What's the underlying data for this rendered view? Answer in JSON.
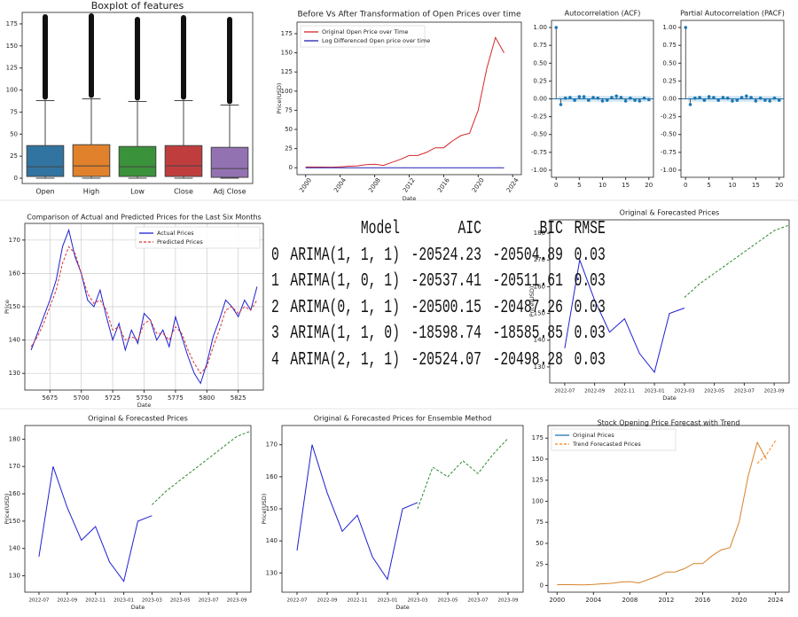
{
  "chart_data": [
    {
      "type": "box",
      "title": "Boxplot of features",
      "categories": [
        "Open",
        "High",
        "Low",
        "Close",
        "Adj Close"
      ],
      "colors": [
        "#3274a1",
        "#e1812c",
        "#3a923a",
        "#c03d3e",
        "#9372b2"
      ],
      "low": [
        0,
        0,
        0,
        0,
        0
      ],
      "q1": [
        2,
        2,
        2,
        2,
        1
      ],
      "median": [
        13,
        14,
        13,
        14,
        11
      ],
      "q3": [
        37,
        38,
        36,
        37,
        35
      ],
      "high": [
        88,
        90,
        87,
        88,
        83
      ],
      "outlier_max": [
        183,
        184,
        180,
        182,
        180
      ],
      "ylim": [
        -6,
        188
      ],
      "yticks": [
        0,
        25,
        50,
        75,
        100,
        125,
        150,
        175
      ]
    },
    {
      "type": "line",
      "title": "Before Vs After Transformation of Open Prices over time",
      "x": [
        2000,
        2001,
        2002,
        2003,
        2004,
        2005,
        2006,
        2007,
        2008,
        2009,
        2010,
        2011,
        2012,
        2013,
        2014,
        2015,
        2016,
        2017,
        2018,
        2019,
        2020,
        2021,
        2022,
        2023
      ],
      "series": [
        {
          "name": "Original Open Price over Time",
          "color": "#d62728",
          "values": [
            1,
            1,
            0.8,
            0.7,
            1.2,
            2,
            2.5,
            4,
            4.5,
            3,
            7,
            11,
            16,
            16,
            20,
            26,
            26,
            35,
            42,
            45,
            75,
            130,
            170,
            150
          ]
        },
        {
          "name": "Log Differenced Open price over time",
          "color": "#1f1fb4",
          "values": [
            0,
            0,
            0,
            0,
            0,
            0,
            0,
            0,
            0,
            0,
            0,
            0,
            0,
            0,
            0,
            0,
            0,
            0,
            0,
            0,
            0,
            0,
            0,
            0
          ]
        }
      ],
      "xlim": [
        1999,
        2025
      ],
      "xticks": [
        2000,
        2004,
        2008,
        2012,
        2016,
        2020,
        2024
      ],
      "ylim": [
        -9,
        190
      ],
      "yticks": [
        0,
        25,
        50,
        75,
        100,
        125,
        150,
        175
      ],
      "xlabel": "Date",
      "ylabel": "Price(USD)",
      "legend": "upper left"
    },
    {
      "type": "stem",
      "title": "Autocorrelation (ACF)",
      "color": "#1f77b4",
      "x": [
        0,
        1,
        2,
        3,
        4,
        5,
        6,
        7,
        8,
        9,
        10,
        11,
        12,
        13,
        14,
        15,
        16,
        17,
        18,
        19,
        20
      ],
      "values": [
        1,
        -0.08,
        0.01,
        0.02,
        -0.02,
        0.03,
        0.03,
        -0.02,
        0.02,
        0.01,
        -0.03,
        -0.02,
        0.02,
        0.04,
        0.02,
        -0.03,
        0.01,
        -0.02,
        -0.03,
        0.01,
        -0.01
      ],
      "xlim": [
        -1,
        21
      ],
      "xticks": [
        0,
        5,
        10,
        15,
        20
      ],
      "ylim": [
        -1.1,
        1.1
      ],
      "yticks": [
        {
          "value": -1,
          "label": "-1.00"
        },
        -0.75,
        {
          "value": -0.5,
          "label": "-0.50"
        },
        -0.25,
        {
          "value": 0,
          "label": "0.00"
        },
        0.25,
        {
          "value": 0.5,
          "label": "0.50"
        },
        0.75,
        {
          "value": 1,
          "label": "1.00"
        }
      ]
    },
    {
      "type": "stem",
      "title": "Partial Autocorrelation (PACF)",
      "color": "#1f77b4",
      "x": [
        0,
        1,
        2,
        3,
        4,
        5,
        6,
        7,
        8,
        9,
        10,
        11,
        12,
        13,
        14,
        15,
        16,
        17,
        18,
        19,
        20
      ],
      "values": [
        1,
        -0.08,
        0.01,
        0.02,
        -0.02,
        0.03,
        0.02,
        -0.02,
        0.02,
        0.01,
        -0.03,
        -0.02,
        0.02,
        0.04,
        0.02,
        -0.03,
        0.01,
        -0.02,
        -0.03,
        0.01,
        -0.02
      ],
      "xlim": [
        -1,
        21
      ],
      "xticks": [
        0,
        5,
        10,
        15,
        20
      ],
      "ylim": [
        -1.1,
        1.1
      ],
      "yticks": [
        {
          "value": -1,
          "label": "-1.00"
        },
        -0.75,
        {
          "value": -0.5,
          "label": "-0.50"
        },
        -0.25,
        {
          "value": 0,
          "label": "0.00"
        },
        0.25,
        {
          "value": 0.5,
          "label": "0.50"
        },
        0.75,
        {
          "value": 1,
          "label": "1.00"
        }
      ]
    },
    {
      "type": "line",
      "title": "Comparison of Actual and Predicted Prices for the Last Six Months",
      "x": [
        5660,
        5665,
        5670,
        5675,
        5680,
        5685,
        5690,
        5695,
        5700,
        5705,
        5710,
        5715,
        5720,
        5725,
        5730,
        5735,
        5740,
        5745,
        5750,
        5755,
        5760,
        5765,
        5770,
        5775,
        5780,
        5785,
        5790,
        5795,
        5800,
        5805,
        5810,
        5815,
        5820,
        5825,
        5830,
        5835,
        5840
      ],
      "series": [
        {
          "name": "Actual Prices",
          "color": "#1f1fd0",
          "values": [
            137,
            142,
            147,
            152,
            158,
            168,
            173,
            165,
            160,
            152,
            150,
            155,
            147,
            140,
            145,
            137,
            143,
            139,
            148,
            146,
            140,
            143,
            138,
            147,
            141,
            135,
            130,
            127,
            133,
            141,
            146,
            152,
            150,
            147,
            152,
            149,
            156
          ]
        },
        {
          "name": "Predicted Prices",
          "color": "#e03030",
          "linestyle": "dashed",
          "values": [
            138,
            141,
            145,
            150,
            155,
            163,
            168,
            166,
            160,
            154,
            151,
            152,
            149,
            143,
            144,
            140,
            141,
            140,
            145,
            146,
            142,
            142,
            140,
            144,
            142,
            137,
            133,
            130,
            132,
            138,
            143,
            149,
            150,
            148,
            150,
            149,
            152
          ]
        }
      ],
      "xlim": [
        5655,
        5845
      ],
      "xticks": [
        5675,
        5700,
        5725,
        5750,
        5775,
        5800,
        5825
      ],
      "ylim": [
        125,
        175
      ],
      "yticks": [
        130,
        140,
        150,
        160,
        170
      ],
      "xlabel": "Date",
      "ylabel": "Price",
      "grid": true,
      "legend": "upper right"
    },
    {
      "type": "line",
      "title": "Original & Forecasted Prices",
      "series": [
        {
          "color": "#1f1fd0",
          "x": [
            "2022-07",
            "2022-08",
            "2022-09",
            "2022-10",
            "2022-11",
            "2022-12",
            "2023-01",
            "2023-02",
            "2023-03"
          ],
          "values": [
            137,
            170,
            155,
            143,
            148,
            135,
            128,
            150,
            152
          ]
        },
        {
          "color": "#2a8a2a",
          "linestyle": "dashed",
          "x": [
            "2023-03",
            "2023-04",
            "2023-05",
            "2023-06",
            "2023-07",
            "2023-08",
            "2023-09",
            "2023-10"
          ],
          "values": [
            156,
            161,
            165,
            169,
            173,
            177,
            181,
            183
          ]
        }
      ],
      "xlim": [
        "2022-06",
        "2023-10"
      ],
      "xticks": [
        "2022-07",
        "2022-09",
        "2022-11",
        "2023-01",
        "2023-03",
        "2023-05",
        "2023-07",
        "2023-09"
      ],
      "ylim": [
        124,
        185
      ],
      "yticks": [
        130,
        140,
        150,
        160,
        170,
        180
      ],
      "xlabel": "Date",
      "ylabel": "Price(USD)"
    },
    {
      "type": "line",
      "title": "Original & Forecasted Prices",
      "series": [
        {
          "color": "#1f1fd0",
          "x": [
            "2022-07",
            "2022-08",
            "2022-09",
            "2022-10",
            "2022-11",
            "2022-12",
            "2023-01",
            "2023-02",
            "2023-03"
          ],
          "values": [
            137,
            170,
            155,
            143,
            148,
            135,
            128,
            150,
            152
          ]
        },
        {
          "color": "#2a8a2a",
          "linestyle": "dashed",
          "x": [
            "2023-03",
            "2023-04",
            "2023-05",
            "2023-06",
            "2023-07",
            "2023-08",
            "2023-09",
            "2023-10"
          ],
          "values": [
            156,
            161,
            165,
            169,
            173,
            177,
            181,
            183
          ]
        }
      ],
      "xlim": [
        "2022-06",
        "2023-10"
      ],
      "xticks": [
        "2022-07",
        "2022-09",
        "2022-11",
        "2023-01",
        "2023-03",
        "2023-05",
        "2023-07",
        "2023-09"
      ],
      "ylim": [
        124,
        185
      ],
      "yticks": [
        130,
        140,
        150,
        160,
        170,
        180
      ],
      "xlabel": "Date",
      "ylabel": "Price(USD)"
    },
    {
      "type": "line",
      "title": "Original & Forecasted Prices for Ensemble Method",
      "series": [
        {
          "color": "#1f1fd0",
          "x": [
            "2022-07",
            "2022-08",
            "2022-09",
            "2022-10",
            "2022-11",
            "2022-12",
            "2023-01",
            "2023-02",
            "2023-03"
          ],
          "values": [
            137,
            170,
            155,
            143,
            148,
            135,
            128,
            150,
            152
          ]
        },
        {
          "color": "#2a8a2a",
          "linestyle": "dashed",
          "x": [
            "2023-03",
            "2023-04",
            "2023-05",
            "2023-06",
            "2023-07",
            "2023-08",
            "2023-09"
          ],
          "values": [
            150,
            163,
            160,
            165,
            161,
            167,
            172
          ]
        }
      ],
      "xlim": [
        "2022-06",
        "2023-10"
      ],
      "xticks": [
        "2022-07",
        "2022-09",
        "2022-11",
        "2023-01",
        "2023-03",
        "2023-05",
        "2023-07",
        "2023-09"
      ],
      "ylim": [
        124,
        176
      ],
      "yticks": [
        130,
        140,
        150,
        160,
        170
      ],
      "xlabel": "Date",
      "ylabel": "Price(USD)"
    },
    {
      "type": "line",
      "title": "Stock Opening Price Forecast with Trend",
      "series": [
        {
          "name": "Original Prices",
          "color": "#1f77b4",
          "line_color": "#d9822b",
          "x": [
            2000,
            2001,
            2002,
            2003,
            2004,
            2005,
            2006,
            2007,
            2008,
            2009,
            2010,
            2011,
            2012,
            2013,
            2014,
            2015,
            2016,
            2017,
            2018,
            2019,
            2020,
            2021,
            2022,
            2023
          ],
          "values": [
            1,
            1,
            0.8,
            0.7,
            1.2,
            2,
            2.5,
            4,
            4.5,
            3,
            7,
            11,
            16,
            16,
            20,
            26,
            26,
            35,
            42,
            45,
            75,
            130,
            170,
            150
          ]
        },
        {
          "name": "Trend Forecasted Prices",
          "color": "#ff7f0e",
          "linestyle": "dashed",
          "x": [
            2022,
            2023,
            2024
          ],
          "values": [
            145,
            155,
            172
          ]
        }
      ],
      "xlim": [
        1999,
        2025.5
      ],
      "xticks": [
        2000,
        2004,
        2008,
        2012,
        2016,
        2020,
        2024
      ],
      "ylim": [
        -8,
        190
      ],
      "yticks": [
        0,
        25,
        50,
        75,
        100,
        125,
        150,
        175
      ],
      "legend": "upper left"
    }
  ],
  "table": {
    "columns": [
      "Model",
      "AIC",
      "BIC",
      "RMSE"
    ],
    "rows": [
      [
        "0",
        "ARIMA(1, 1, 1)",
        "-20524.23",
        "-20504.89",
        "0.03"
      ],
      [
        "1",
        "ARIMA(1, 0, 1)",
        "-20537.41",
        "-20511.61",
        "0.03"
      ],
      [
        "2",
        "ARIMA(0, 1, 1)",
        "-20500.15",
        "-20487.26",
        "0.03"
      ],
      [
        "3",
        "ARIMA(1, 1, 0)",
        "-18598.74",
        "-18585.85",
        "0.03"
      ],
      [
        "4",
        "ARIMA(2, 1, 1)",
        "-20524.07",
        "-20498.28",
        "0.03"
      ]
    ]
  }
}
